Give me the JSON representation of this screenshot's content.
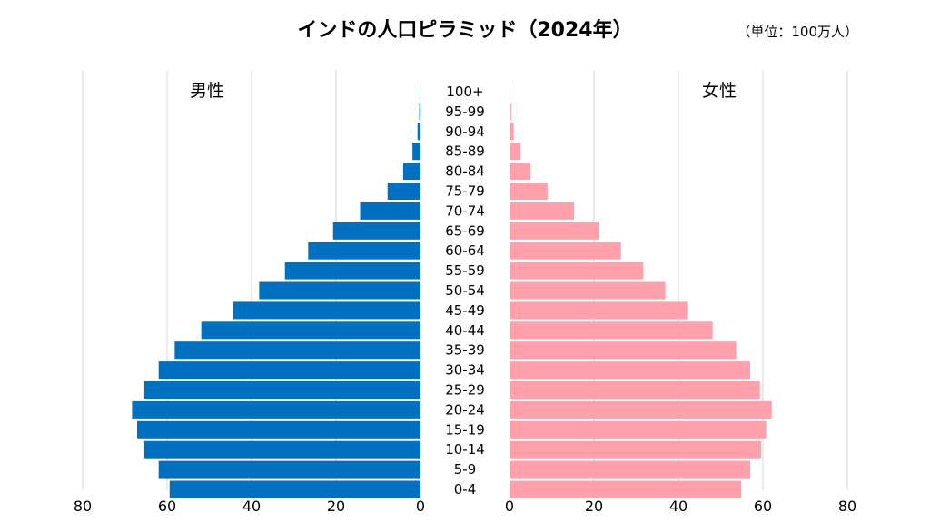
{
  "chart_data": {
    "type": "bar",
    "orientation": "horizontal",
    "layout": "population-pyramid",
    "title": "インドの人口ピラミッド（2024年）",
    "unit": "（単位：100万人）",
    "grid": true,
    "categories": [
      "100+",
      "95-99",
      "90-94",
      "85-89",
      "80-84",
      "75-79",
      "70-74",
      "65-69",
      "60-64",
      "55-59",
      "50-54",
      "45-49",
      "40-44",
      "35-39",
      "30-34",
      "25-29",
      "20-24",
      "15-19",
      "10-14",
      "5-9",
      "0-4"
    ],
    "series": [
      {
        "name": "男性",
        "color": "#0070c0",
        "values": [
          0.05,
          0.3,
          0.7,
          1.9,
          4.1,
          7.8,
          14.3,
          20.7,
          26.6,
          32.1,
          38.2,
          44.3,
          51.9,
          58.2,
          62.0,
          65.4,
          68.3,
          67.1,
          65.4,
          62.0,
          59.4
        ]
      },
      {
        "name": "女性",
        "color": "#ffa0aa",
        "values": [
          0.1,
          0.4,
          1.0,
          2.6,
          5.0,
          9.0,
          15.3,
          21.3,
          26.4,
          31.7,
          36.9,
          42.1,
          48.1,
          53.7,
          57.0,
          59.3,
          62.1,
          60.8,
          59.6,
          57.0,
          54.9
        ]
      }
    ],
    "xlim": [
      0,
      80
    ],
    "xticks": [
      80,
      60,
      40,
      20,
      0
    ],
    "xticks_right": [
      0,
      20,
      40,
      60,
      80
    ]
  }
}
